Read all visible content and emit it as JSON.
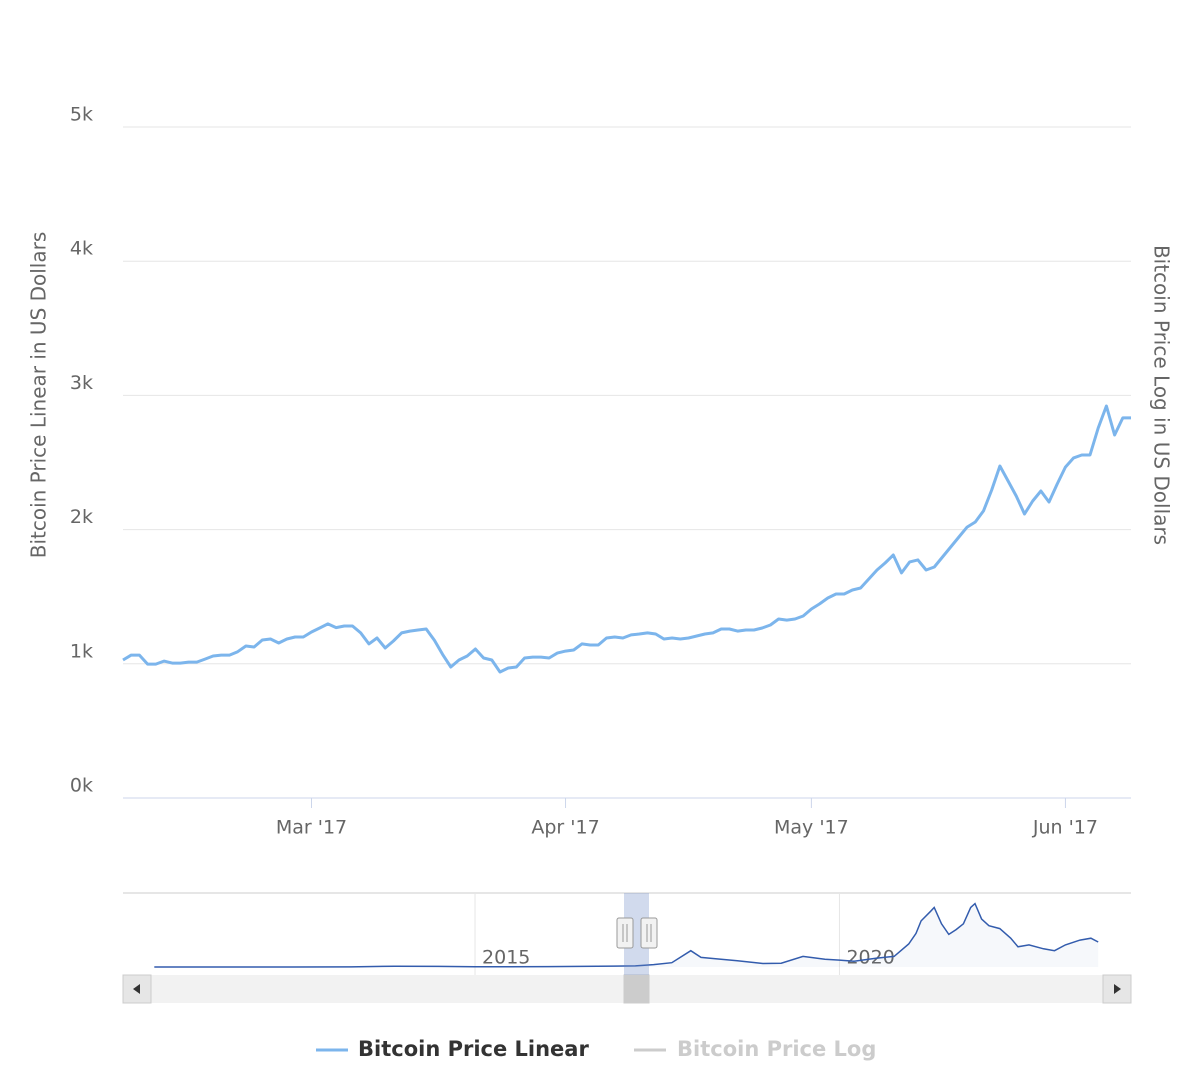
{
  "chart_data": [
    {
      "type": "line",
      "y_axis_title": "Bitcoin Price Linear in US Dollars",
      "y2_axis_title": "Bitcoin Price Log in US Dollars",
      "categories": [
        null,
        null,
        null,
        null,
        null,
        null,
        null,
        null,
        null,
        null,
        null,
        null,
        null,
        null,
        null,
        null,
        null,
        null,
        null,
        null,
        null,
        null,
        null,
        "Mar '17",
        null,
        null,
        null,
        null,
        null,
        null,
        null,
        null,
        null,
        null,
        null,
        null,
        null,
        null,
        null,
        null,
        null,
        null,
        null,
        null,
        null,
        null,
        null,
        null,
        null,
        null,
        null,
        null,
        null,
        null,
        "Apr '17",
        null,
        null,
        null,
        null,
        null,
        null,
        null,
        null,
        null,
        null,
        null,
        null,
        null,
        null,
        null,
        null,
        null,
        null,
        null,
        null,
        null,
        null,
        null,
        null,
        null,
        null,
        null,
        null,
        null,
        "May '17",
        null,
        null,
        null,
        null,
        null,
        null,
        null,
        null,
        null,
        null,
        null,
        null,
        null,
        null,
        null,
        null,
        null,
        null,
        null,
        null,
        null,
        null,
        null,
        null,
        null,
        null,
        null,
        null,
        null,
        null,
        "Jun '17",
        null,
        null,
        null,
        null,
        null,
        null,
        null,
        null
      ],
      "series": [
        {
          "name": "Bitcoin Price Linear",
          "color": "#7cb5ec",
          "values": [
            1028,
            1065,
            1065,
            998,
            998,
            1020,
            1005,
            1005,
            1013,
            1013,
            1035,
            1058,
            1065,
            1065,
            1090,
            1133,
            1125,
            1177,
            1185,
            1155,
            1185,
            1200,
            1200,
            1237,
            1267,
            1297,
            1270,
            1282,
            1282,
            1230,
            1148,
            1192,
            1118,
            1170,
            1230,
            1244,
            1252,
            1259,
            1175,
            1070,
            976,
            1028,
            1058,
            1110,
            1043,
            1028,
            939,
            969,
            976,
            1043,
            1050,
            1050,
            1043,
            1080,
            1095,
            1103,
            1148,
            1140,
            1140,
            1192,
            1200,
            1192,
            1215,
            1222,
            1230,
            1222,
            1185,
            1192,
            1185,
            1192,
            1207,
            1222,
            1230,
            1259,
            1259,
            1244,
            1252,
            1252,
            1267,
            1289,
            1334,
            1326,
            1334,
            1356,
            1408,
            1446,
            1490,
            1520,
            1520,
            1550,
            1565,
            1632,
            1699,
            1751,
            1811,
            1677,
            1759,
            1774,
            1699,
            1721,
            1796,
            1870,
            1945,
            2019,
            2057,
            2139,
            2295,
            2474,
            2362,
            2250,
            2116,
            2213,
            2288,
            2206,
            2340,
            2466,
            2534,
            2556,
            2556,
            2757,
            2921,
            2705,
            2832,
            2832
          ]
        },
        {
          "name": "Bitcoin Price Log",
          "color": "#cccccc",
          "axis": "y2",
          "visible": false
        }
      ],
      "ylim": [
        0,
        5000
      ],
      "yticks": [
        {
          "value": 0,
          "label": "0k"
        },
        {
          "value": 1000,
          "label": "1k"
        },
        {
          "value": 2000,
          "label": "2k"
        },
        {
          "value": 3000,
          "label": "3k"
        },
        {
          "value": 4000,
          "label": "4k"
        },
        {
          "value": 5000,
          "label": "5k"
        }
      ],
      "grid": true
    },
    {
      "type": "area",
      "x": [
        2010.6,
        2011.5,
        2012.5,
        2013.3,
        2013.9,
        2014.5,
        2015,
        2016,
        2016.9,
        2017.2,
        2017.45,
        2017.7,
        2017.96,
        2018.1,
        2018.3,
        2018.6,
        2018.95,
        2019.2,
        2019.5,
        2019.8,
        2020.0,
        2020.2,
        2020.5,
        2020.75,
        2020.95,
        2021.05,
        2021.12,
        2021.25,
        2021.3,
        2021.4,
        2021.5,
        2021.6,
        2021.7,
        2021.8,
        2021.86,
        2021.95,
        2022.05,
        2022.2,
        2022.35,
        2022.45,
        2022.6,
        2022.8,
        2022.95,
        2023.1,
        2023.3,
        2023.45,
        2023.55
      ],
      "values": [
        0,
        10,
        10,
        100,
        800,
        600,
        250,
        400,
        900,
        1100,
        2500,
        4500,
        17000,
        10000,
        8500,
        6500,
        3600,
        4000,
        11000,
        8000,
        7200,
        6000,
        9200,
        11000,
        24000,
        35000,
        48000,
        58000,
        62000,
        45000,
        34000,
        39000,
        45000,
        62000,
        66000,
        50000,
        43000,
        40000,
        30000,
        21000,
        23000,
        19000,
        17000,
        23000,
        28000,
        30000,
        26000
      ],
      "color": "#335cad",
      "xlim": [
        2010.17,
        2024.0
      ],
      "xticks": [
        2015,
        2020
      ],
      "ylim": [
        0,
        75000
      ]
    }
  ]
}
